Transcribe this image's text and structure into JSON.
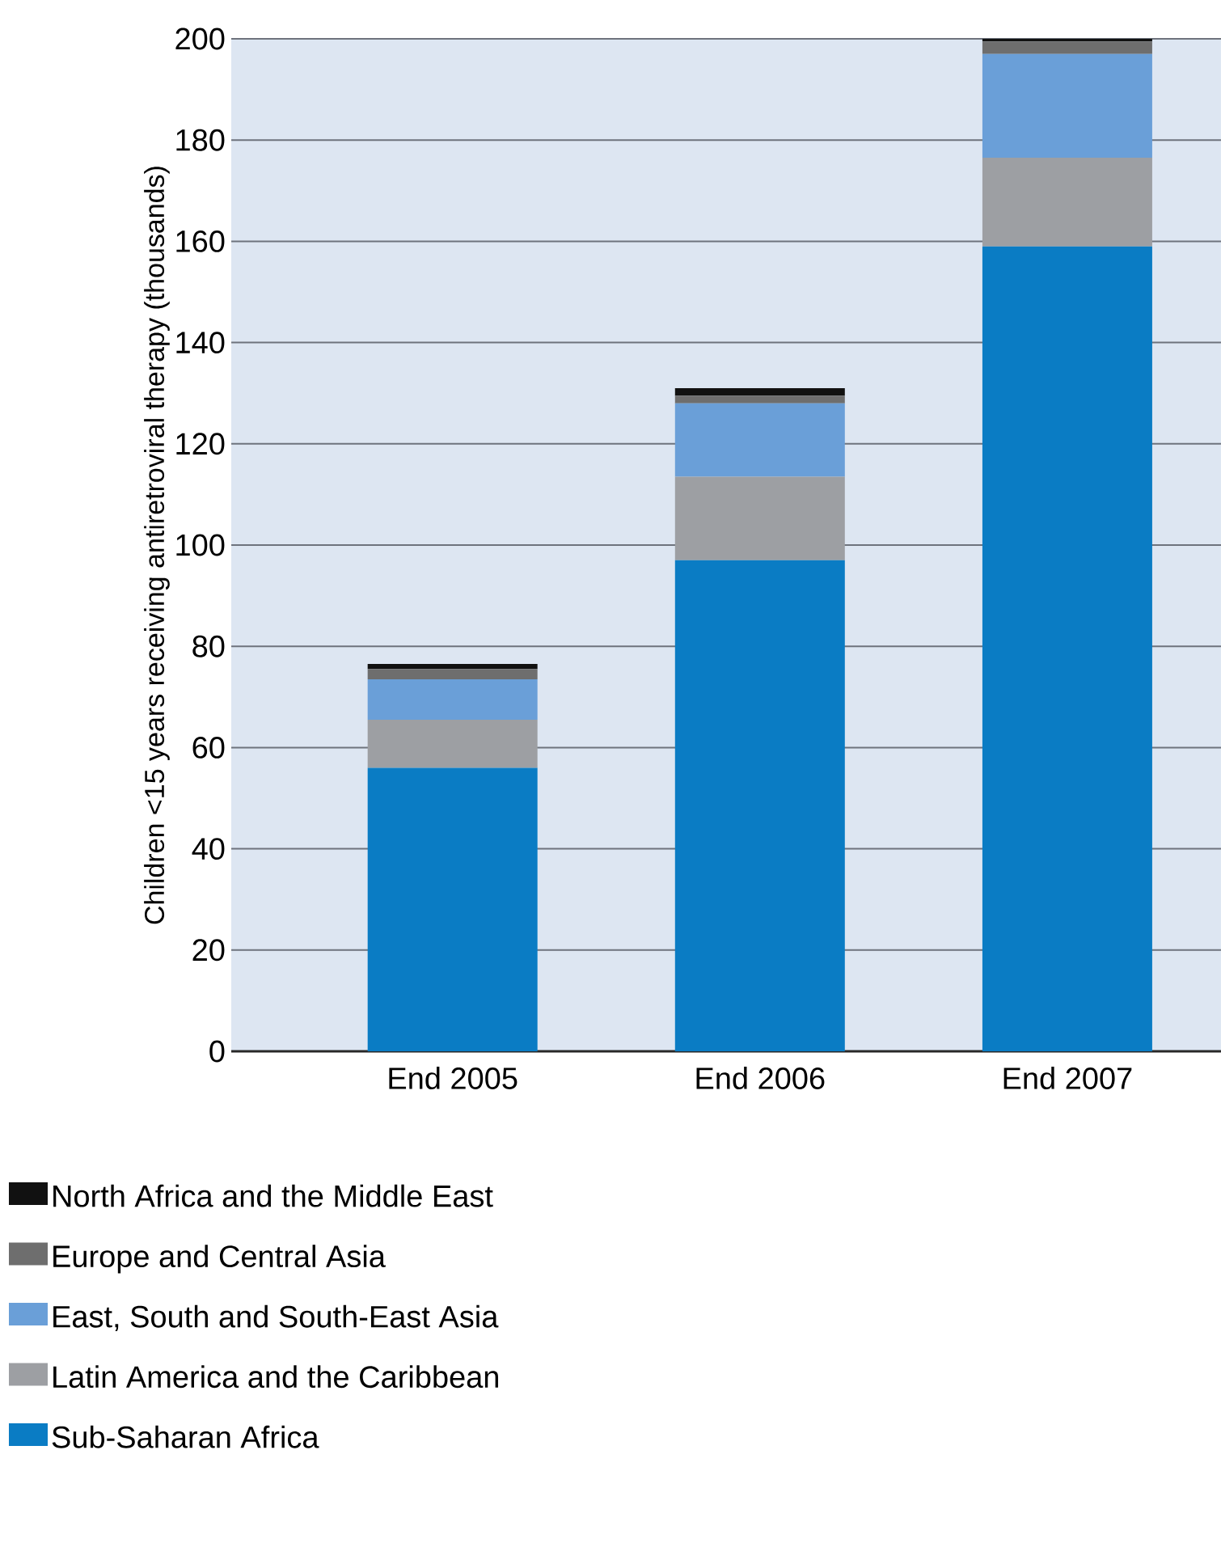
{
  "chart_data": {
    "type": "bar",
    "stacked": true,
    "ylabel": "Children <15 years receiving antiretroviral therapy (thousands)",
    "categories": [
      "End 2005",
      "End 2006",
      "End 2007"
    ],
    "series": [
      {
        "name": "Sub-Saharan Africa",
        "color": "#0a7cc4",
        "values": [
          56,
          97,
          159
        ]
      },
      {
        "name": "Latin America and the Caribbean",
        "color": "#9d9fa3",
        "values": [
          9.5,
          16.5,
          17.5
        ]
      },
      {
        "name": "East, South and South-East Asia",
        "color": "#6a9fd8",
        "values": [
          8,
          14.5,
          20.5
        ]
      },
      {
        "name": "Europe and Central Asia",
        "color": "#6e6e6e",
        "values": [
          2,
          1.5,
          2.5
        ]
      },
      {
        "name": "North Africa and the Middle East",
        "color": "#111111",
        "values": [
          1,
          1.5,
          1
        ]
      }
    ],
    "ylim": [
      0,
      200
    ],
    "yticks": [
      0,
      20,
      40,
      60,
      80,
      100,
      120,
      140,
      160,
      180,
      200
    ],
    "grid": "y",
    "legend": "bottom"
  }
}
